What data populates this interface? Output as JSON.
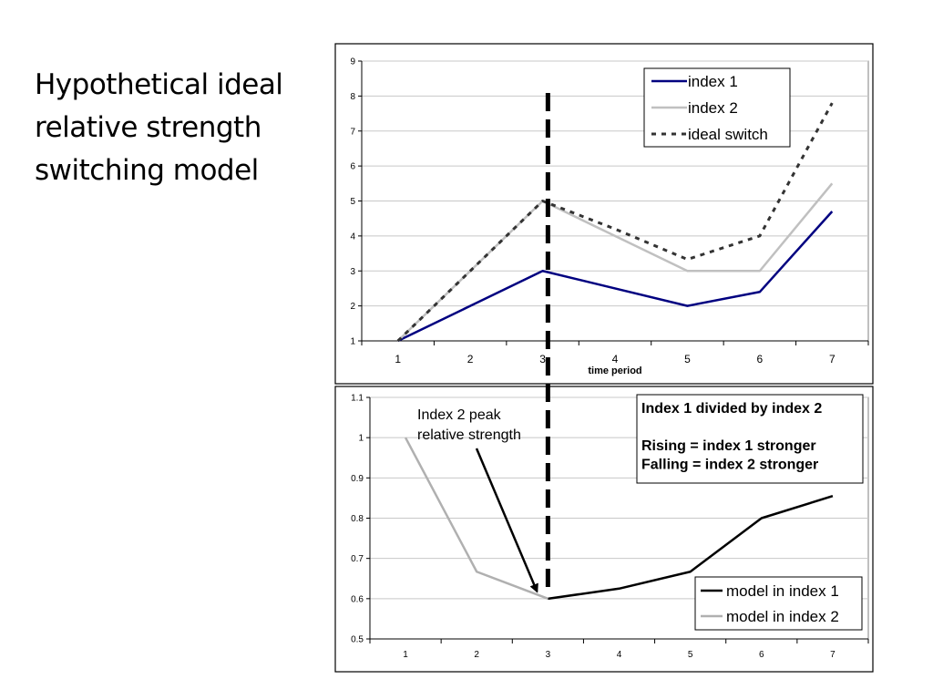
{
  "slide": {
    "title_lines": [
      "Hypothetical ideal",
      "relative strength",
      "switching model"
    ]
  },
  "chart_data": [
    {
      "type": "line",
      "x": [
        1,
        2,
        3,
        4,
        5,
        6,
        7
      ],
      "xlabel": "time period",
      "ylabel": "",
      "ylim": [
        1,
        9
      ],
      "y_ticks": [
        1,
        2,
        3,
        4,
        5,
        6,
        7,
        8,
        9
      ],
      "grid": "horizontal",
      "legend": "top-right",
      "series": [
        {
          "name": "index 1",
          "values": [
            1.0,
            2.0,
            3.0,
            2.5,
            2.0,
            2.4,
            4.7
          ],
          "color": "#000080",
          "style": "solid"
        },
        {
          "name": "index 2",
          "values": [
            1.0,
            3.0,
            5.0,
            4.0,
            3.0,
            3.0,
            5.5
          ],
          "color": "#c0c0c0",
          "style": "solid"
        },
        {
          "name": "ideal switch",
          "values": [
            1.0,
            3.0,
            5.0,
            4.2,
            3.33,
            4.0,
            7.8
          ],
          "color": "#333333",
          "style": "dotted"
        }
      ],
      "switch_marker_x": 3
    },
    {
      "type": "line",
      "x": [
        1,
        2,
        3,
        4,
        5,
        6,
        7
      ],
      "xlabel": "",
      "ylabel": "",
      "ylim": [
        0.5,
        1.1
      ],
      "y_ticks": [
        0.5,
        0.6,
        0.7,
        0.8,
        0.9,
        1,
        1.1
      ],
      "grid": "horizontal",
      "legend": "bottom-right",
      "series": [
        {
          "name": "model in index 1",
          "x": [
            3,
            4,
            5,
            6,
            7
          ],
          "values": [
            0.6,
            0.625,
            0.667,
            0.8,
            0.855
          ],
          "color": "#000000"
        },
        {
          "name": "model in index 2",
          "x": [
            1,
            2,
            3
          ],
          "values": [
            1.0,
            0.667,
            0.6
          ],
          "color": "#b0b0b0"
        }
      ],
      "annotations": {
        "arrow_label_lines": [
          "Index 2 peak",
          "relative strength"
        ],
        "arrow_target": {
          "x": 3,
          "y": 0.6
        },
        "info_box_lines": [
          "Index 1 divided by index 2",
          "",
          "Rising = index 1 stronger",
          "Falling = index 2 stronger"
        ]
      }
    }
  ]
}
